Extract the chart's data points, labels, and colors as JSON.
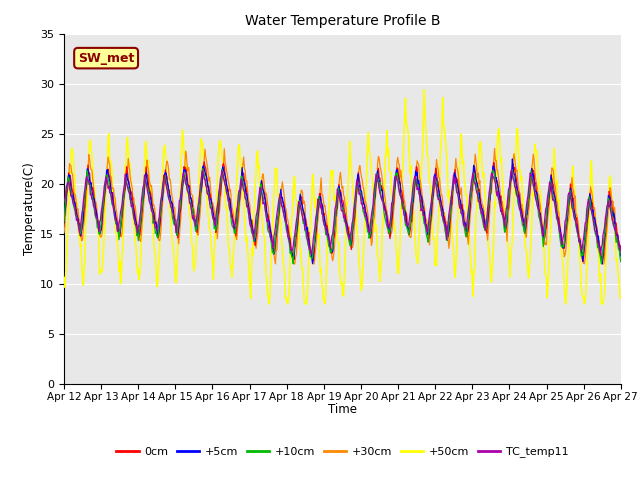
{
  "title": "Water Temperature Profile B",
  "xlabel": "Time",
  "ylabel": "Temperature(C)",
  "ylim": [
    0,
    35
  ],
  "yticks": [
    0,
    5,
    10,
    15,
    20,
    25,
    30,
    35
  ],
  "annotation_text": "SW_met",
  "annotation_color": "#8B0000",
  "annotation_bg": "#FFFF99",
  "figure_bg": "#FFFFFF",
  "plot_bg": "#E8E8E8",
  "grid_color": "#FFFFFF",
  "series_colors": {
    "0cm": "#FF0000",
    "+5cm": "#0000FF",
    "+10cm": "#00BB00",
    "+30cm": "#FF8800",
    "+50cm": "#FFFF00",
    "TC_temp11": "#AA00AA"
  },
  "xticklabels": [
    "Apr 12",
    "Apr 13",
    "Apr 14",
    "Apr 15",
    "Apr 16",
    "Apr 17",
    "Apr 18",
    "Apr 19",
    "Apr 20",
    "Apr 21",
    "Apr 22",
    "Apr 23",
    "Apr 24",
    "Apr 25",
    "Apr 26",
    "Apr 27"
  ],
  "time_days": 15
}
